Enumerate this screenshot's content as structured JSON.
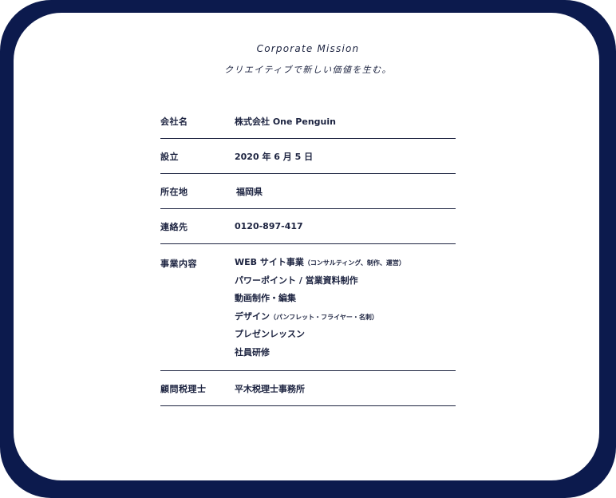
{
  "header": {
    "title": "Corporate Mission",
    "mission": "クリエイティブで新しい価値を生む。"
  },
  "profile": {
    "company_name": {
      "label": "会社名",
      "value": "株式会社 One Penguin"
    },
    "established": {
      "label": "設立",
      "value": "2020 年 6 月 5 日"
    },
    "location": {
      "label": "所在地",
      "value": "福岡県"
    },
    "contact": {
      "label": "連絡先",
      "value": "0120-897-417"
    },
    "business": {
      "label": "事業内容",
      "items": [
        {
          "main": "WEB サイト事業",
          "note": "（コンサルティング、制作、運営）"
        },
        {
          "main": "パワーポイント / 営業資料制作",
          "note": ""
        },
        {
          "main": "動画制作・編集",
          "note": ""
        },
        {
          "main": "デザイン",
          "note": "（パンフレット・フライヤー・名刺）"
        },
        {
          "main": "プレゼンレッスン",
          "note": ""
        },
        {
          "main": "社員研修",
          "note": ""
        }
      ]
    },
    "accountant": {
      "label": "顧問税理士",
      "value": "平木税理士事務所"
    }
  },
  "colors": {
    "frame": "#0c1a4d",
    "text": "#1c2340",
    "background": "#ffffff"
  }
}
